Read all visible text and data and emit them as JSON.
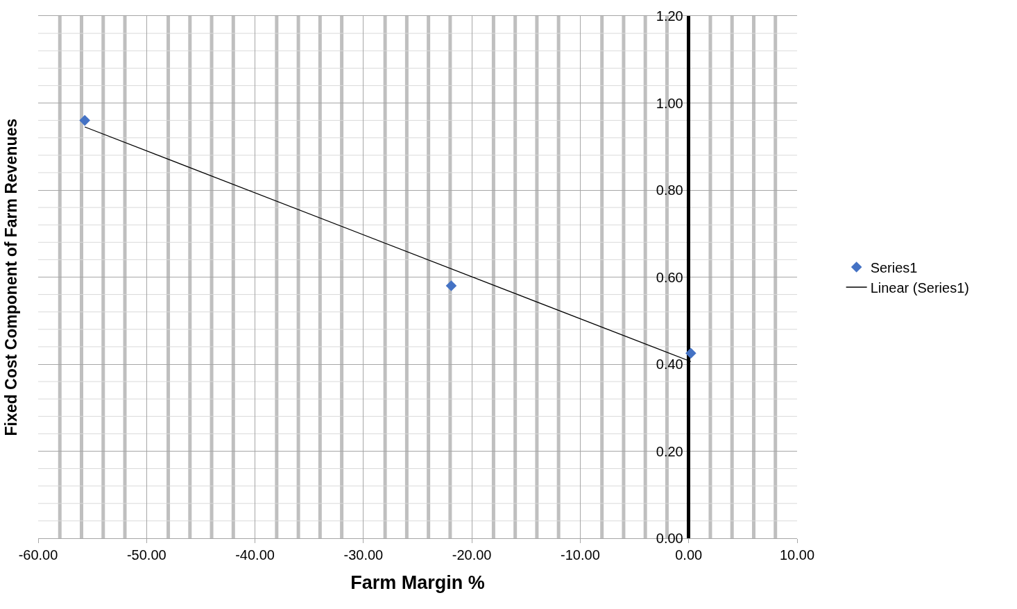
{
  "chart_data": {
    "type": "scatter",
    "xlabel": "Farm Margin %",
    "ylabel": "Fixed Cost Component of Farm Revenues",
    "xlim": [
      -60,
      10
    ],
    "ylim": [
      0,
      1.2
    ],
    "xticks": [
      {
        "value": -60,
        "label": "-60.00"
      },
      {
        "value": -50,
        "label": "-50.00"
      },
      {
        "value": -40,
        "label": "-40.00"
      },
      {
        "value": -30,
        "label": "-30.00"
      },
      {
        "value": -20,
        "label": "-20.00"
      },
      {
        "value": -10,
        "label": "-10.00"
      },
      {
        "value": 0,
        "label": "0.00"
      },
      {
        "value": 10,
        "label": "10.00"
      }
    ],
    "yticks": [
      {
        "value": 0,
        "label": "0.00"
      },
      {
        "value": 0.2,
        "label": "0.20"
      },
      {
        "value": 0.4,
        "label": "0.40"
      },
      {
        "value": 0.6,
        "label": "0.60"
      },
      {
        "value": 0.8,
        "label": "0.80"
      },
      {
        "value": 1.0,
        "label": "1.00"
      },
      {
        "value": 1.2,
        "label": "1.20"
      }
    ],
    "grid": true,
    "legend": "right",
    "series": [
      {
        "name": "Series1",
        "marker": "diamond",
        "color": "#4472c4",
        "x": [
          -55.7,
          -21.9,
          0.2
        ],
        "values": [
          0.96,
          0.58,
          0.425
        ]
      },
      {
        "name": "Linear (Series1)",
        "type": "line",
        "marker": "none",
        "line_style": "solid",
        "color": "#000000",
        "x": [
          -55.7,
          0.2
        ],
        "values": [
          0.945,
          0.406
        ]
      }
    ]
  }
}
